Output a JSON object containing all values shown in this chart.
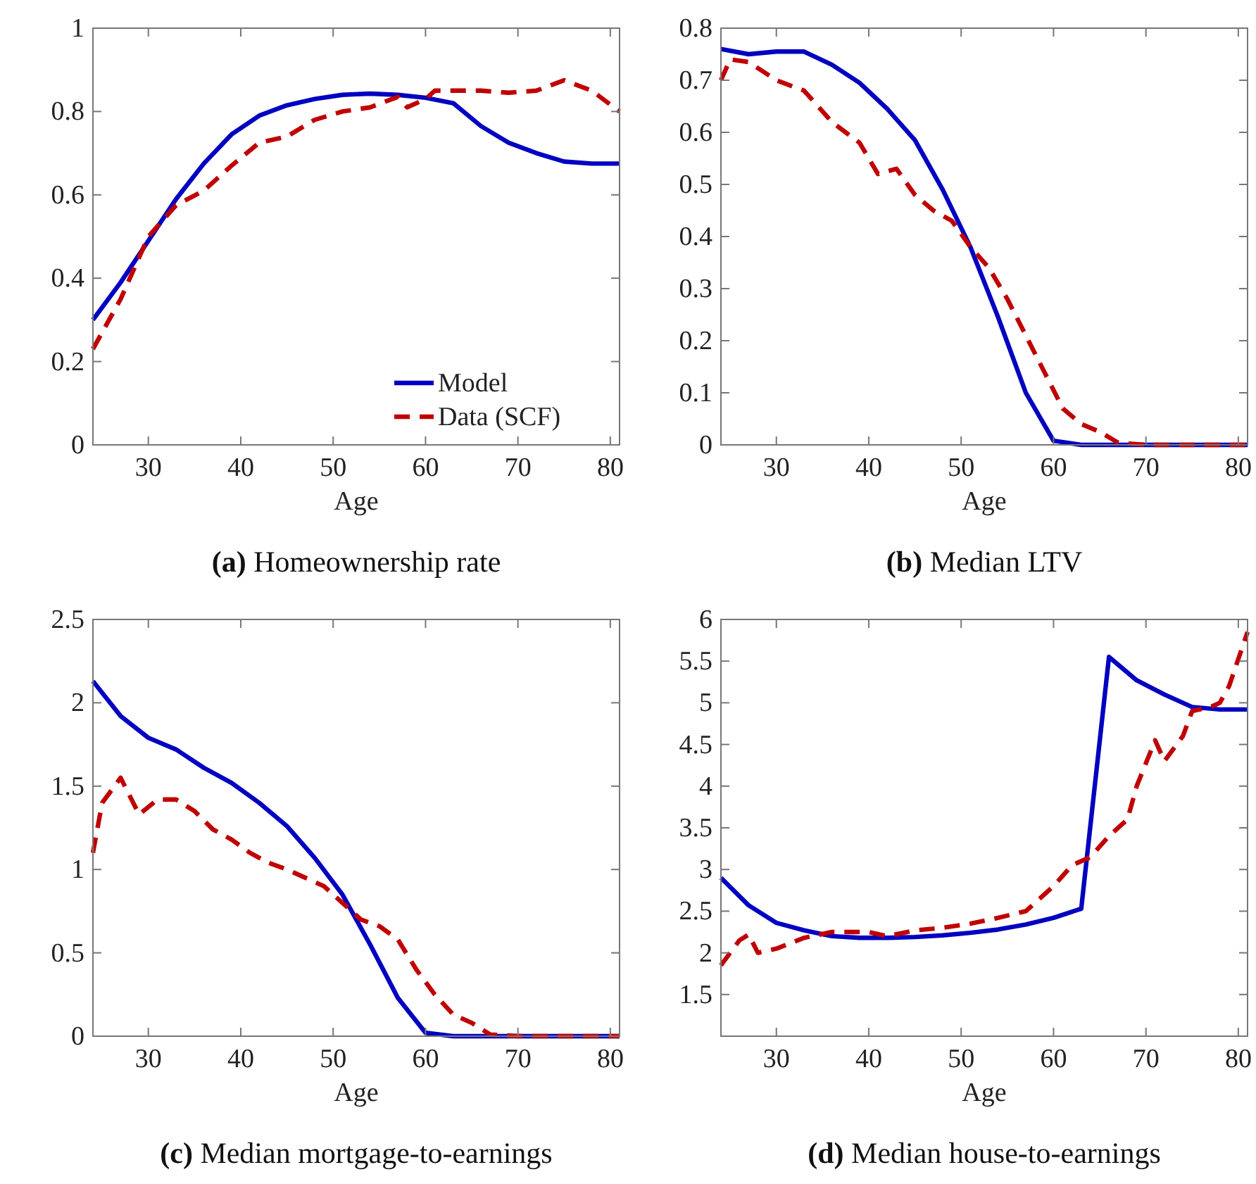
{
  "chart_data": [
    {
      "type": "line",
      "title": "(a) Homeownership rate",
      "xlabel": "Age",
      "xlim": [
        24,
        81
      ],
      "xticks": [
        30,
        40,
        50,
        60,
        70,
        80
      ],
      "ylim": [
        0,
        1
      ],
      "yticks": [
        0,
        0.2,
        0.4,
        0.6,
        0.8,
        1
      ],
      "legend": "bottom right",
      "grid": false,
      "series": [
        {
          "name": "Model",
          "color": "#0000c0",
          "line_style": "solid",
          "x": [
            24,
            27,
            30,
            33,
            36,
            39,
            42,
            45,
            48,
            51,
            54,
            57,
            60,
            63,
            66,
            69,
            72,
            75,
            78,
            81
          ],
          "values": [
            0.3,
            0.39,
            0.49,
            0.59,
            0.675,
            0.745,
            0.79,
            0.815,
            0.83,
            0.84,
            0.843,
            0.84,
            0.833,
            0.82,
            0.765,
            0.725,
            0.7,
            0.68,
            0.675,
            0.675
          ]
        },
        {
          "name": "Data (SCF)",
          "color": "#c00000",
          "line_style": "dashed",
          "x": [
            24,
            27,
            30,
            33,
            36,
            39,
            42,
            45,
            48,
            51,
            54,
            57,
            58,
            60,
            61,
            63,
            66,
            69,
            72,
            75,
            78,
            81
          ],
          "values": [
            0.23,
            0.35,
            0.5,
            0.575,
            0.61,
            0.67,
            0.725,
            0.74,
            0.78,
            0.8,
            0.81,
            0.835,
            0.81,
            0.83,
            0.85,
            0.85,
            0.85,
            0.845,
            0.85,
            0.875,
            0.85,
            0.8
          ]
        }
      ]
    },
    {
      "type": "line",
      "title": "(b) Median LTV",
      "xlabel": "Age",
      "xlim": [
        24,
        81
      ],
      "xticks": [
        30,
        40,
        50,
        60,
        70,
        80
      ],
      "ylim": [
        0,
        0.8
      ],
      "yticks": [
        0,
        0.1,
        0.2,
        0.3,
        0.4,
        0.5,
        0.6,
        0.7,
        0.8
      ],
      "grid": false,
      "series": [
        {
          "color": "#0000c0",
          "line_style": "solid",
          "x": [
            24,
            27,
            30,
            33,
            36,
            39,
            42,
            45,
            48,
            51,
            54,
            57,
            60,
            63,
            66,
            69,
            72,
            75,
            78,
            81
          ],
          "values": [
            0.76,
            0.75,
            0.755,
            0.755,
            0.73,
            0.695,
            0.645,
            0.585,
            0.49,
            0.38,
            0.245,
            0.1,
            0.008,
            0,
            0,
            0,
            0,
            0,
            0,
            0
          ]
        },
        {
          "color": "#c00000",
          "line_style": "dashed",
          "x": [
            24,
            25,
            27,
            30,
            33,
            36,
            39,
            41,
            43,
            45,
            47,
            49,
            51,
            53,
            55,
            57,
            59,
            61,
            63,
            65,
            67,
            70,
            75,
            81
          ],
          "values": [
            0.7,
            0.74,
            0.735,
            0.7,
            0.68,
            0.62,
            0.58,
            0.52,
            0.53,
            0.48,
            0.45,
            0.43,
            0.38,
            0.34,
            0.28,
            0.21,
            0.14,
            0.07,
            0.04,
            0.025,
            0.004,
            0,
            0,
            0
          ]
        }
      ]
    },
    {
      "type": "line",
      "title": "(c) Median mortgage-to-earnings",
      "xlabel": "Age",
      "xlim": [
        24,
        81
      ],
      "xticks": [
        30,
        40,
        50,
        60,
        70,
        80
      ],
      "ylim": [
        0,
        2.5
      ],
      "yticks": [
        0,
        0.5,
        1,
        1.5,
        2,
        2.5
      ],
      "grid": false,
      "series": [
        {
          "color": "#0000c0",
          "line_style": "solid",
          "x": [
            24,
            27,
            30,
            33,
            36,
            39,
            42,
            45,
            48,
            51,
            54,
            57,
            60,
            63,
            66,
            69,
            72,
            75,
            78,
            81
          ],
          "values": [
            2.13,
            1.92,
            1.79,
            1.72,
            1.61,
            1.52,
            1.4,
            1.26,
            1.07,
            0.85,
            0.55,
            0.23,
            0.02,
            0,
            0,
            0,
            0,
            0,
            0,
            0
          ]
        },
        {
          "color": "#c00000",
          "line_style": "dashed",
          "x": [
            24,
            25,
            27,
            29,
            31,
            33,
            35,
            37,
            39,
            41,
            43,
            45,
            47,
            49,
            51,
            53,
            55,
            57,
            59,
            61,
            63,
            65,
            67,
            70,
            81
          ],
          "values": [
            1.1,
            1.4,
            1.55,
            1.33,
            1.42,
            1.42,
            1.35,
            1.24,
            1.18,
            1.1,
            1.04,
            1.0,
            0.95,
            0.9,
            0.8,
            0.7,
            0.66,
            0.58,
            0.4,
            0.25,
            0.13,
            0.08,
            0.01,
            0,
            0
          ]
        }
      ]
    },
    {
      "type": "line",
      "title": "(d) Median house-to-earnings",
      "xlabel": "Age",
      "xlim": [
        24,
        81
      ],
      "xticks": [
        30,
        40,
        50,
        60,
        70,
        80
      ],
      "ylim": [
        1,
        6
      ],
      "yticks": [
        1.5,
        2,
        2.5,
        3,
        3.5,
        4,
        4.5,
        5,
        5.5,
        6
      ],
      "grid": false,
      "series": [
        {
          "color": "#0000c0",
          "line_style": "solid",
          "x": [
            24,
            27,
            30,
            33,
            36,
            39,
            42,
            45,
            48,
            51,
            54,
            57,
            60,
            63,
            66,
            69,
            72,
            75,
            78,
            81
          ],
          "values": [
            2.9,
            2.57,
            2.36,
            2.27,
            2.2,
            2.18,
            2.18,
            2.19,
            2.21,
            2.24,
            2.28,
            2.34,
            2.42,
            2.53,
            5.55,
            5.27,
            5.1,
            4.95,
            4.92,
            4.92
          ]
        },
        {
          "color": "#c00000",
          "line_style": "dashed",
          "x": [
            24,
            26,
            27,
            28,
            30,
            33,
            36,
            38,
            40,
            42,
            45,
            48,
            51,
            54,
            57,
            60,
            62,
            64,
            66,
            68,
            69,
            71,
            72,
            74,
            75,
            77,
            78,
            79,
            81
          ],
          "values": [
            1.85,
            2.15,
            2.22,
            2.0,
            2.05,
            2.18,
            2.25,
            2.25,
            2.25,
            2.2,
            2.27,
            2.3,
            2.35,
            2.42,
            2.5,
            2.8,
            3.05,
            3.15,
            3.4,
            3.6,
            4.0,
            4.55,
            4.3,
            4.6,
            4.9,
            4.95,
            5.0,
            5.2,
            5.85
          ]
        }
      ]
    }
  ]
}
